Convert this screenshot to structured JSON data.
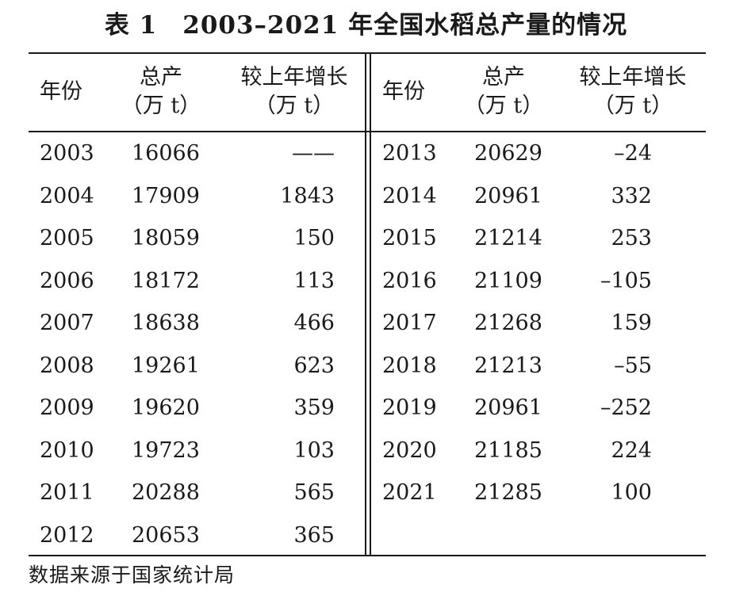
{
  "title": "表 1　2003–2021 年全国水稻总产量的情况",
  "headers": {
    "year": "年份",
    "total_line1": "总产",
    "total_line2": "（万 t）",
    "increase_line1": "较上年增长",
    "increase_line2": "（万 t）"
  },
  "left_rows": [
    {
      "year": "2003",
      "total": "16066",
      "increase": "——"
    },
    {
      "year": "2004",
      "total": "17909",
      "increase": "1843"
    },
    {
      "year": "2005",
      "total": "18059",
      "increase": "150"
    },
    {
      "year": "2006",
      "total": "18172",
      "increase": "113"
    },
    {
      "year": "2007",
      "total": "18638",
      "increase": "466"
    },
    {
      "year": "2008",
      "total": "19261",
      "increase": "623"
    },
    {
      "year": "2009",
      "total": "19620",
      "increase": "359"
    },
    {
      "year": "2010",
      "total": "19723",
      "increase": "103"
    },
    {
      "year": "2011",
      "total": "20288",
      "increase": "565"
    },
    {
      "year": "2012",
      "total": "20653",
      "increase": "365"
    }
  ],
  "right_rows": [
    {
      "year": "2013",
      "total": "20629",
      "increase": "–24"
    },
    {
      "year": "2014",
      "total": "20961",
      "increase": "332"
    },
    {
      "year": "2015",
      "total": "21214",
      "increase": "253"
    },
    {
      "year": "2016",
      "total": "21109",
      "increase": "–105"
    },
    {
      "year": "2017",
      "total": "21268",
      "increase": "159"
    },
    {
      "year": "2018",
      "total": "21213",
      "increase": "–55"
    },
    {
      "year": "2019",
      "total": "20961",
      "increase": "–252"
    },
    {
      "year": "2020",
      "total": "21185",
      "increase": "224"
    },
    {
      "year": "2021",
      "total": "21285",
      "increase": "100"
    }
  ],
  "source": "数据来源于国家统计局"
}
